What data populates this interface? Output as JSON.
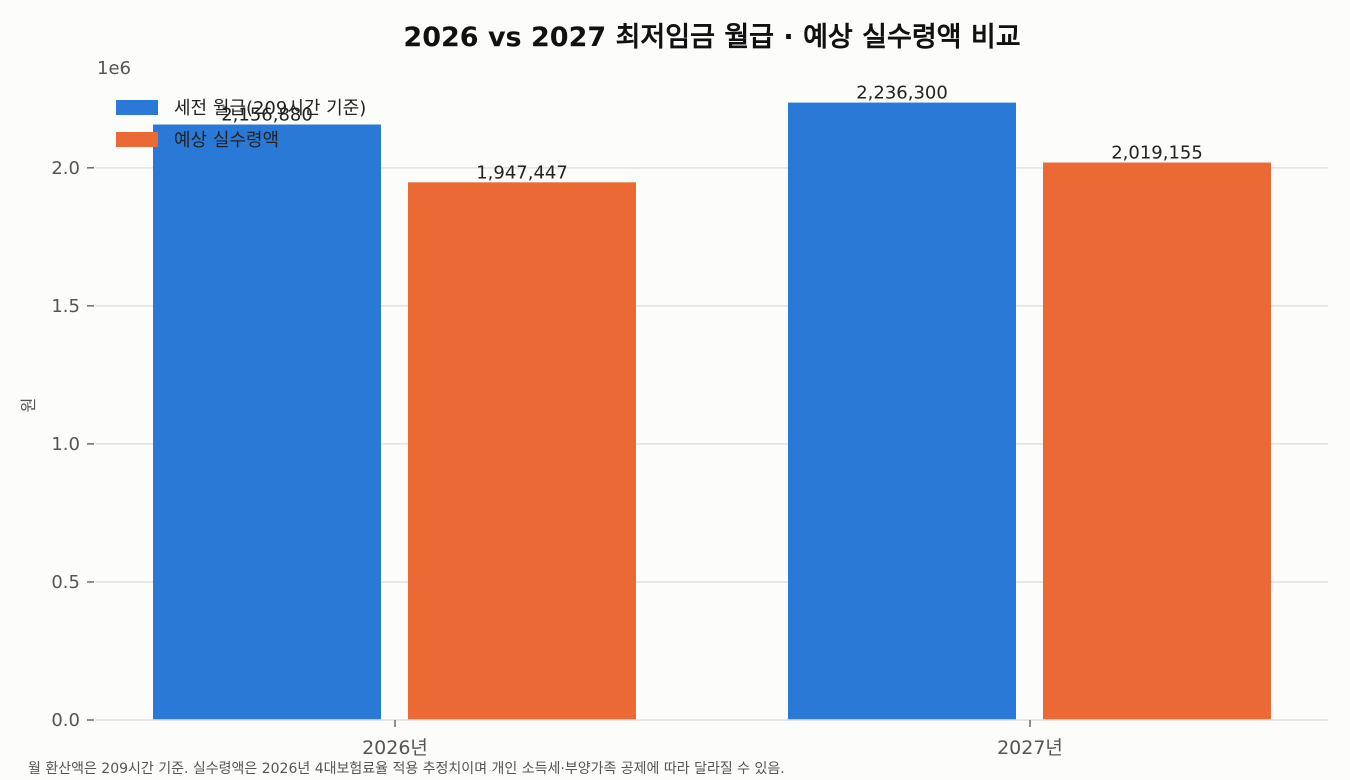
{
  "chart_data": {
    "type": "bar",
    "title": "2026 vs 2027 최저임금 월급 · 예상 실수령액 비교",
    "categories": [
      "2026년",
      "2027년"
    ],
    "series": [
      {
        "name": "세전 월급(209시간 기준)",
        "values": [
          2156880,
          2236300
        ],
        "color": "#2a79d6"
      },
      {
        "name": "예상 실수령액",
        "values": [
          1947447,
          2019155
        ],
        "color": "#ea6935"
      }
    ],
    "data_labels": [
      [
        "2,156,880",
        "2,236,300"
      ],
      [
        "1,947,447",
        "2,019,155"
      ]
    ],
    "ylabel": "원",
    "y_offset_label": "1e6",
    "y_scale": 1000000,
    "ylim": [
      0,
      2300000
    ],
    "y_ticks": [
      0,
      500000,
      1000000,
      1500000,
      2000000
    ],
    "y_tick_labels": [
      "0.0",
      "0.5",
      "1.0",
      "1.5",
      "2.0"
    ],
    "grid": "horizontal",
    "legend_position": "top-left",
    "footnote": "월 환산액은 209시간 기준. 실수령액은 2026년 4대보험료율 적용 추정치이며 개인 소득세·부양가족 공제에 따라 달라질 수 있음."
  }
}
